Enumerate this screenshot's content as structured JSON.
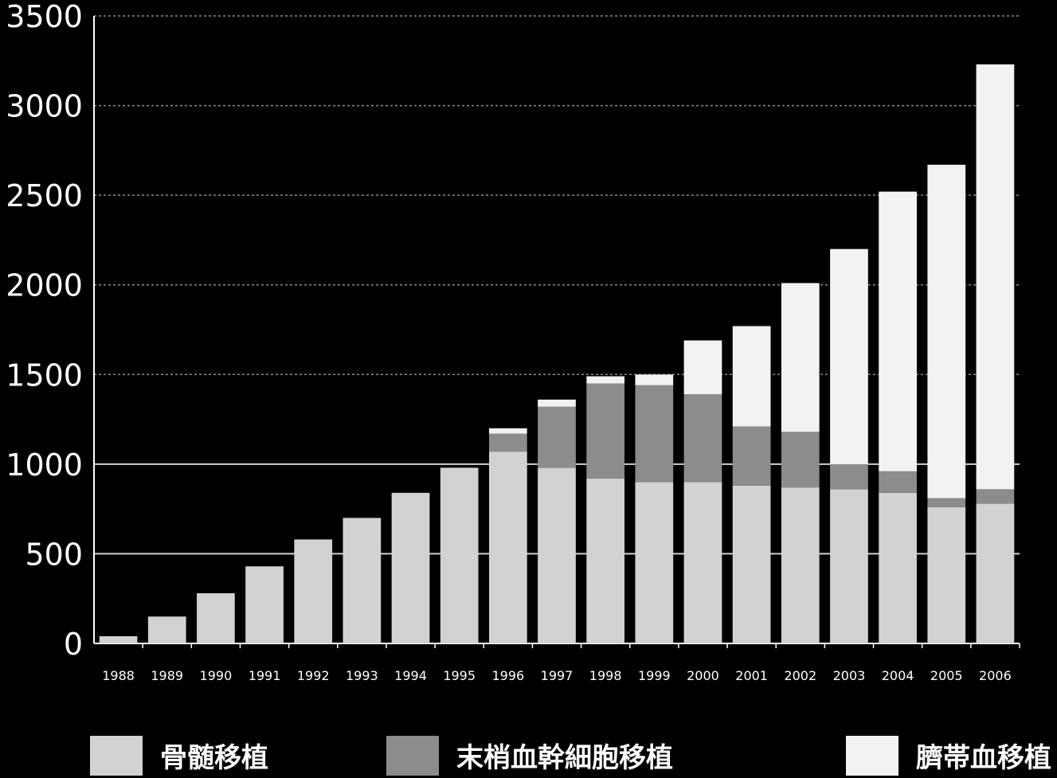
{
  "colors": {
    "background": "#000000",
    "axis": "#ffffff",
    "grid": "#8a8a8a",
    "bone_marrow": "#d2d2d2",
    "pbsc": "#8c8c8c",
    "cord_blood": "#f2f2f2"
  },
  "chart_data": {
    "type": "bar",
    "stacked": true,
    "categories": [
      "1988",
      "1989",
      "1990",
      "1991",
      "1992",
      "1993",
      "1994",
      "1995",
      "1996",
      "1997",
      "1998",
      "1999",
      "2000",
      "2001",
      "2002",
      "2003",
      "2004",
      "2005",
      "2006"
    ],
    "series": [
      {
        "name": "骨髄移植",
        "color": "#d2d2d2",
        "values": [
          40,
          150,
          280,
          430,
          580,
          700,
          840,
          980,
          1070,
          980,
          920,
          900,
          900,
          880,
          870,
          860,
          840,
          760,
          780
        ]
      },
      {
        "name": "末梢血幹細胞移植",
        "color": "#8c8c8c",
        "values": [
          0,
          0,
          0,
          0,
          0,
          0,
          0,
          0,
          100,
          340,
          530,
          540,
          490,
          330,
          310,
          140,
          120,
          50,
          80
        ]
      },
      {
        "name": "臍帯血移植",
        "color": "#f2f2f2",
        "values": [
          0,
          0,
          0,
          0,
          0,
          0,
          0,
          0,
          30,
          40,
          40,
          60,
          300,
          560,
          830,
          1200,
          1560,
          1860,
          2370
        ]
      }
    ],
    "yticks": [
      "0",
      "500",
      "1000",
      "1500",
      "2000",
      "2500",
      "3000",
      "3500"
    ],
    "ylim": [
      0,
      3500
    ],
    "grid": true,
    "legend_position": "bottom"
  }
}
